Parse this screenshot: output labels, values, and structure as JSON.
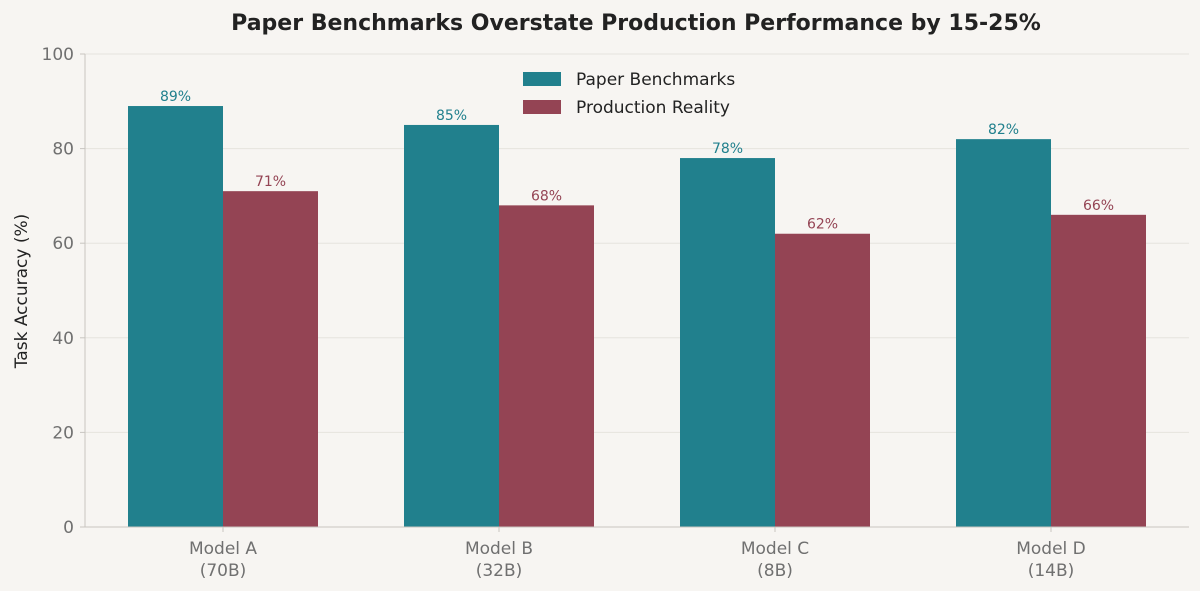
{
  "chart_data": {
    "type": "bar",
    "title": "Paper Benchmarks Overstate Production Performance by 15-25%",
    "ylabel": "Task Accuracy (%)",
    "xlabel": "",
    "ylim": [
      0,
      100
    ],
    "yticks": [
      0,
      20,
      40,
      60,
      80,
      100
    ],
    "categories": [
      [
        "Model A",
        "(70B)"
      ],
      [
        "Model B",
        "(32B)"
      ],
      [
        "Model C",
        "(8B)"
      ],
      [
        "Model D",
        "(14B)"
      ]
    ],
    "series": [
      {
        "name": "Paper Benchmarks",
        "color": "#21808d",
        "values": [
          89,
          85,
          78,
          82
        ],
        "labels": [
          "89%",
          "85%",
          "78%",
          "82%"
        ]
      },
      {
        "name": "Production Reality",
        "color": "#944454",
        "values": [
          71,
          68,
          62,
          66
        ],
        "labels": [
          "71%",
          "68%",
          "62%",
          "66%"
        ]
      }
    ],
    "grid": "horizontal",
    "legend_position": "top-center"
  }
}
